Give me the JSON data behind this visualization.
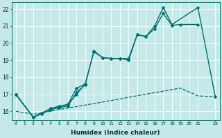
{
  "xlabel": "Humidex (Indice chaleur)",
  "bg_color": "#c5e8e8",
  "grid_color": "#ffffff",
  "line_color": "#007070",
  "xlim": [
    -0.5,
    23.5
  ],
  "ylim": [
    15.5,
    22.4
  ],
  "xtick_vals": [
    0,
    1,
    2,
    3,
    4,
    5,
    6,
    7,
    8,
    9,
    10,
    11,
    12,
    13,
    14,
    15,
    16,
    17,
    18,
    19,
    20,
    21,
    23
  ],
  "xtick_labels": [
    "0",
    "1",
    "2",
    "3",
    "4",
    "5",
    "6",
    "7",
    "8",
    "9",
    "10",
    "11",
    "12",
    "13",
    "14",
    "15",
    "16",
    "17",
    "18",
    "19",
    "20",
    "21",
    "23"
  ],
  "ytick_vals": [
    16,
    17,
    18,
    19,
    20,
    21,
    22
  ],
  "series1_x": [
    0,
    2,
    3,
    4,
    5,
    6,
    7,
    8,
    9,
    10,
    11,
    12,
    13,
    14,
    15,
    16,
    17,
    18,
    19,
    21
  ],
  "series1_y": [
    17.0,
    15.65,
    15.85,
    16.1,
    16.2,
    16.3,
    17.1,
    17.55,
    19.55,
    19.15,
    19.1,
    19.1,
    19.0,
    20.5,
    20.4,
    20.85,
    21.75,
    21.05,
    21.1,
    21.1
  ],
  "series2_x": [
    0,
    2,
    3,
    4,
    5,
    6,
    7,
    8,
    9,
    10,
    11,
    12,
    13,
    14,
    15,
    16,
    17,
    18,
    21,
    23
  ],
  "series2_y": [
    17.0,
    15.65,
    15.85,
    16.15,
    16.25,
    16.4,
    17.35,
    17.6,
    19.5,
    19.15,
    19.1,
    19.1,
    19.1,
    20.5,
    20.4,
    21.0,
    22.1,
    21.1,
    22.1,
    16.85
  ],
  "series3_x": [
    0,
    2,
    3,
    4,
    5,
    6,
    7,
    8
  ],
  "series3_y": [
    17.0,
    15.65,
    15.9,
    16.15,
    16.3,
    16.4,
    17.0,
    17.6
  ],
  "series4_x": [
    0,
    2,
    3,
    4,
    5,
    6,
    7,
    8,
    9,
    10,
    11,
    12,
    13,
    14,
    15,
    16,
    17,
    18,
    19,
    21,
    23
  ],
  "series4_y": [
    16.0,
    15.82,
    15.9,
    16.0,
    16.1,
    16.18,
    16.27,
    16.36,
    16.45,
    16.54,
    16.63,
    16.72,
    16.82,
    16.91,
    17.0,
    17.09,
    17.18,
    17.27,
    17.36,
    16.9,
    16.85
  ]
}
